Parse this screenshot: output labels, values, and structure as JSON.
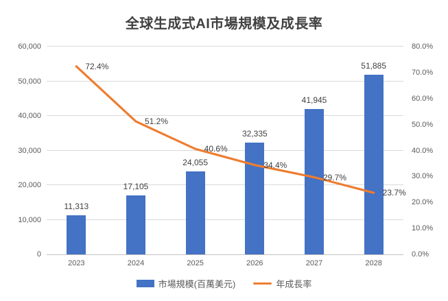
{
  "title": "全球生成式AI市場規模及成長率",
  "colors": {
    "bar": "#4472C4",
    "line": "#ED7D31",
    "grid": "#D9D9D9",
    "axis_line": "#BFBFBF",
    "tick_text": "#595959",
    "data_label_text": "#404040",
    "title_text": "#404040"
  },
  "chart_data": {
    "type": "combo",
    "title": "全球生成式AI市場規模及成長率",
    "categories": [
      "2023",
      "2024",
      "2025",
      "2026",
      "2027",
      "2028"
    ],
    "series": [
      {
        "name": "市場規模(百萬美元)",
        "type": "bar",
        "axis": "left",
        "values": [
          11313,
          17105,
          24055,
          32335,
          41945,
          51885
        ],
        "labels": [
          "11,313",
          "17,105",
          "24,055",
          "32,335",
          "41,945",
          "51,885"
        ]
      },
      {
        "name": "年成長率",
        "type": "line",
        "axis": "right",
        "values": [
          72.4,
          51.2,
          40.6,
          34.4,
          29.7,
          23.7
        ],
        "labels": [
          "72.4%",
          "51.2%",
          "40.6%",
          "34.4%",
          "29.7%",
          "23.7%"
        ]
      }
    ],
    "left_axis": {
      "min": 0,
      "max": 60000,
      "step": 10000,
      "tick_labels": [
        "0",
        "10,000",
        "20,000",
        "30,000",
        "40,000",
        "50,000",
        "60,000"
      ]
    },
    "right_axis": {
      "min": 0,
      "max": 80,
      "step": 10,
      "tick_labels": [
        "0.0%",
        "10.0%",
        "20.0%",
        "30.0%",
        "40.0%",
        "50.0%",
        "60.0%",
        "70.0%",
        "80.0%"
      ]
    },
    "grid": true,
    "legend_position": "bottom"
  },
  "legend": {
    "items": [
      {
        "label": "市場規模(百萬美元)",
        "swatch": "bar"
      },
      {
        "label": "年成長率",
        "swatch": "line"
      }
    ]
  }
}
